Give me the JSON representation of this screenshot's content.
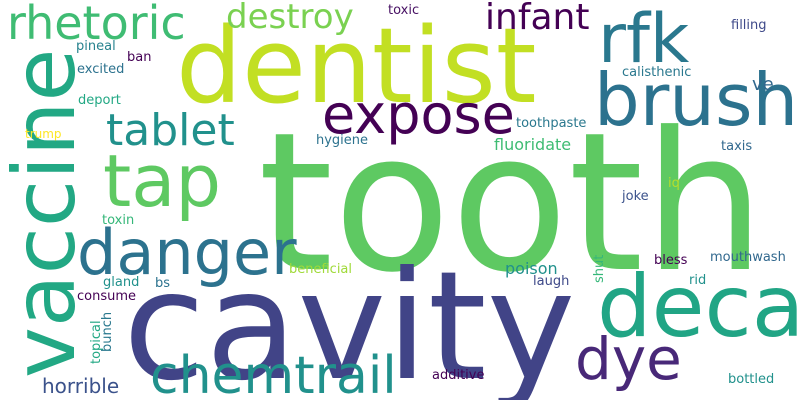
{
  "words": [
    {
      "text": "tooth",
      "color": "#5ec962"
    },
    {
      "text": "cavity",
      "color": "#414487"
    },
    {
      "text": "dentist",
      "color": "#c2df23"
    },
    {
      "text": "vaccine",
      "color": "#22a884"
    },
    {
      "text": "decay",
      "color": "#21a585"
    },
    {
      "text": "brush",
      "color": "#2c728e"
    },
    {
      "text": "rfk",
      "color": "#2a788e"
    },
    {
      "text": "tap",
      "color": "#5ec962"
    },
    {
      "text": "danger",
      "color": "#2c728e"
    },
    {
      "text": "chemtrail",
      "color": "#21918c"
    },
    {
      "text": "expose",
      "color": "#440154"
    },
    {
      "text": "rhetoric",
      "color": "#3fbc73"
    },
    {
      "text": "tablet",
      "color": "#21918c"
    },
    {
      "text": "dye",
      "color": "#482878"
    },
    {
      "text": "infant",
      "color": "#440154"
    },
    {
      "text": "destroy",
      "color": "#7ad151"
    },
    {
      "text": "horrible",
      "color": "#3b528b"
    },
    {
      "text": "poison",
      "color": "#21918c"
    },
    {
      "text": "fluoridate",
      "color": "#3fbc73"
    },
    {
      "text": "ve",
      "color": "#31688e"
    },
    {
      "text": "toxic",
      "color": "#471063"
    },
    {
      "text": "filling",
      "color": "#3e4989"
    },
    {
      "text": "pineal",
      "color": "#26828e"
    },
    {
      "text": "ban",
      "color": "#440154"
    },
    {
      "text": "excited",
      "color": "#2c728e"
    },
    {
      "text": "calisthenic",
      "color": "#2a788e"
    },
    {
      "text": "deport",
      "color": "#22a884"
    },
    {
      "text": "trump",
      "color": "#fde725"
    },
    {
      "text": "toothpaste",
      "color": "#2a788e"
    },
    {
      "text": "hygiene",
      "color": "#2c728e"
    },
    {
      "text": "taxis",
      "color": "#31688e"
    },
    {
      "text": "iq",
      "color": "#b5de2b"
    },
    {
      "text": "joke",
      "color": "#3b528b"
    },
    {
      "text": "toxin",
      "color": "#35b779"
    },
    {
      "text": "gland",
      "color": "#21918c"
    },
    {
      "text": "beneficial",
      "color": "#a0da39"
    },
    {
      "text": "shut",
      "color": "#35b779"
    },
    {
      "text": "bless",
      "color": "#440154"
    },
    {
      "text": "mouthwash",
      "color": "#31688e"
    },
    {
      "text": "consume",
      "color": "#440154"
    },
    {
      "text": "bs",
      "color": "#2c728e"
    },
    {
      "text": "laugh",
      "color": "#3e4989"
    },
    {
      "text": "rid",
      "color": "#21918c"
    },
    {
      "text": "topical",
      "color": "#22a884"
    },
    {
      "text": "bunch",
      "color": "#2a788e"
    },
    {
      "text": "additive",
      "color": "#440154"
    },
    {
      "text": "bottled",
      "color": "#21918c"
    }
  ]
}
